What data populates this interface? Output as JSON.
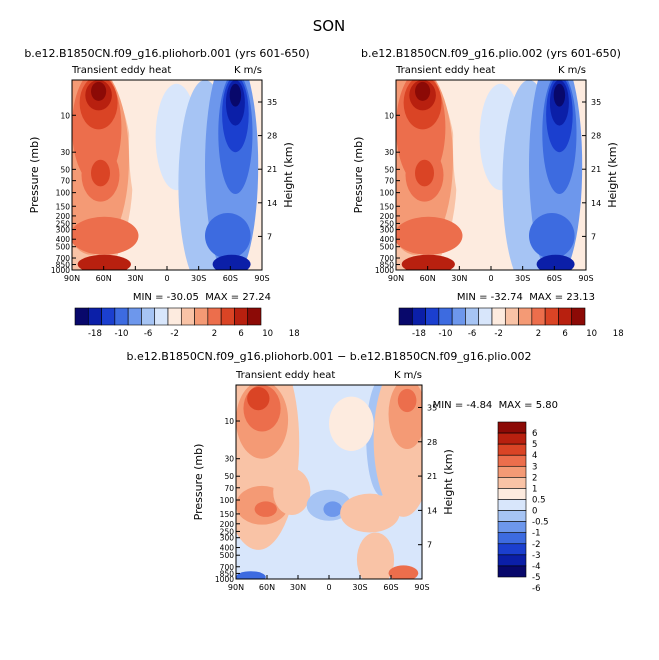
{
  "figure_title": "SON",
  "chart_data": [
    {
      "type": "heatmap",
      "title": "b.e12.B1850CN.f09_g16.pliohorb.001 (yrs 601-650)",
      "subtitle_left": "Transient eddy heat",
      "subtitle_right": "K m/s",
      "ylabel": "Pressure (mb)",
      "ylabel_right": "Height (km)",
      "x_ticks": [
        "90N",
        "60N",
        "30N",
        "0",
        "30S",
        "60S",
        "90S"
      ],
      "y_ticks": [
        "10",
        "30",
        "50",
        "70",
        "100",
        "150",
        "200",
        "250",
        "300",
        "400",
        "500",
        "700",
        "850",
        "1000"
      ],
      "y_ticks_right": [
        "35",
        "28",
        "21",
        "14",
        "7"
      ],
      "stats": {
        "min_label": "MIN =",
        "min": "-30.05",
        "max_label": "MAX =",
        "max": "27.24"
      },
      "colorbar_labels": [
        "-18",
        "-10",
        "-6",
        "-2",
        "2",
        "6",
        "10",
        "18"
      ]
    },
    {
      "type": "heatmap",
      "title": "b.e12.B1850CN.f09_g16.plio.002 (yrs 601-650)",
      "subtitle_left": "Transient eddy heat",
      "subtitle_right": "K m/s",
      "ylabel": "Pressure (mb)",
      "ylabel_right": "Height (km)",
      "x_ticks": [
        "90N",
        "60N",
        "30N",
        "0",
        "30S",
        "60S",
        "90S"
      ],
      "y_ticks": [
        "10",
        "30",
        "50",
        "70",
        "100",
        "150",
        "200",
        "250",
        "300",
        "400",
        "500",
        "700",
        "850",
        "1000"
      ],
      "y_ticks_right": [
        "35",
        "28",
        "21",
        "14",
        "7"
      ],
      "stats": {
        "min_label": "MIN =",
        "min": "-32.74",
        "max_label": "MAX =",
        "max": "23.13"
      },
      "colorbar_labels": [
        "-18",
        "-10",
        "-6",
        "-2",
        "2",
        "6",
        "10",
        "18"
      ]
    },
    {
      "type": "heatmap",
      "title": "b.e12.B1850CN.f09_g16.pliohorb.001 − b.e12.B1850CN.f09_g16.plio.002",
      "subtitle_left": "Transient eddy heat",
      "subtitle_right": "K m/s",
      "ylabel": "Pressure (mb)",
      "ylabel_right": "Height (km)",
      "x_ticks": [
        "90N",
        "60N",
        "30N",
        "0",
        "30S",
        "60S",
        "90S"
      ],
      "y_ticks": [
        "10",
        "30",
        "50",
        "70",
        "100",
        "150",
        "200",
        "250",
        "300",
        "400",
        "500",
        "700",
        "850",
        "1000"
      ],
      "y_ticks_right": [
        "35",
        "28",
        "21",
        "14",
        "7"
      ],
      "stats": {
        "min_label": "MIN =",
        "min": "-4.84",
        "max_label": "MAX =",
        "max": "5.80"
      },
      "colorbar_labels": [
        "6",
        "5",
        "4",
        "3",
        "2",
        "1",
        "0.5",
        "0",
        "-0.5",
        "-1",
        "-2",
        "-3",
        "-4",
        "-5",
        "-6"
      ]
    }
  ],
  "colors": {
    "scale": [
      "#08086b",
      "#0b1fa8",
      "#1b3fcf",
      "#3d6be0",
      "#6d97ec",
      "#a6c4f4",
      "#d8e6fb",
      "#fdebdf",
      "#f9c3a6",
      "#f49a75",
      "#ec6e4c",
      "#da4425",
      "#b8200f",
      "#8c0a06"
    ]
  }
}
